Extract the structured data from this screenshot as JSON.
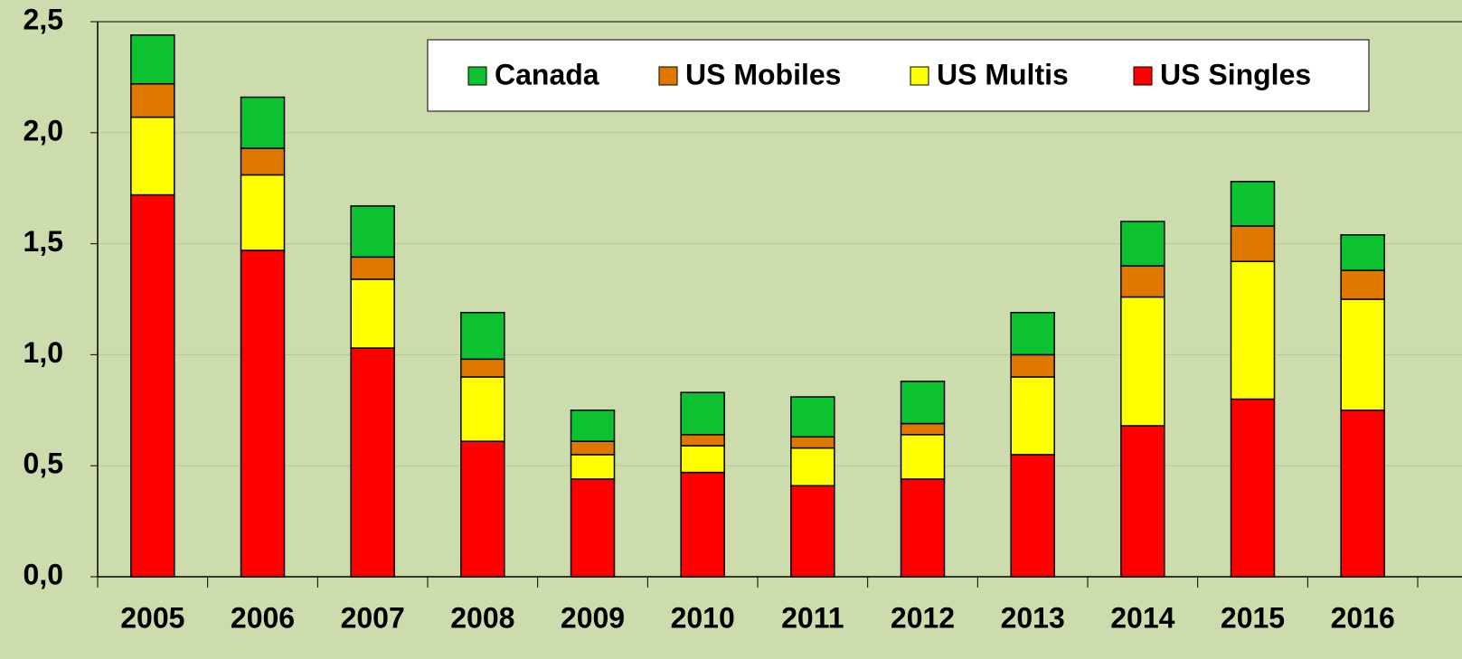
{
  "chart_data": {
    "type": "stacked_bar",
    "categories": [
      "2005",
      "2006",
      "2007",
      "2008",
      "2009",
      "2010",
      "2011",
      "2012",
      "2013",
      "2014",
      "2015",
      "2016"
    ],
    "series": [
      {
        "name": "US Singles",
        "color": "#ff0000",
        "values": [
          1.72,
          1.47,
          1.03,
          0.61,
          0.44,
          0.47,
          0.41,
          0.44,
          0.55,
          0.68,
          0.8,
          0.75
        ]
      },
      {
        "name": "US Multis",
        "color": "#ffff00",
        "values": [
          0.35,
          0.34,
          0.31,
          0.29,
          0.11,
          0.12,
          0.17,
          0.2,
          0.35,
          0.58,
          0.62,
          0.5
        ]
      },
      {
        "name": "US Mobiles",
        "color": "#e07800",
        "values": [
          0.15,
          0.12,
          0.1,
          0.08,
          0.06,
          0.05,
          0.05,
          0.05,
          0.1,
          0.14,
          0.16,
          0.13
        ]
      },
      {
        "name": "Canada",
        "color": "#0cc230",
        "values": [
          0.22,
          0.23,
          0.23,
          0.21,
          0.14,
          0.19,
          0.18,
          0.19,
          0.19,
          0.2,
          0.2,
          0.16
        ]
      }
    ],
    "ylim": [
      0,
      2.5
    ],
    "yticks": [
      {
        "value": 0,
        "label": "0,0"
      },
      {
        "value": 0.5,
        "label": "0,5"
      },
      {
        "value": 1,
        "label": "1,0"
      },
      {
        "value": 1.5,
        "label": "1,5"
      },
      {
        "value": 2,
        "label": "2,0"
      },
      {
        "value": 2.5,
        "label": "2,5"
      }
    ],
    "grid": true
  }
}
